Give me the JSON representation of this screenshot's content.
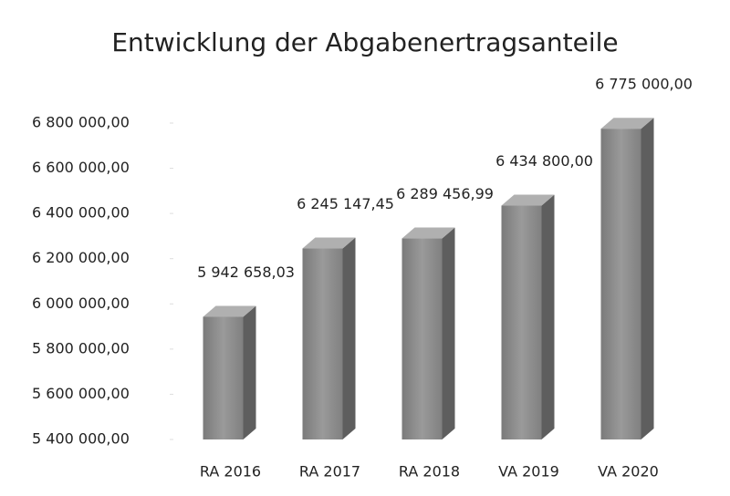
{
  "chart_data": {
    "type": "bar3d",
    "title": "Entwicklung der Abgabenertragsanteile",
    "categories": [
      "RA 2016",
      "RA 2017",
      "RA 2018",
      "VA 2019",
      "VA 2020"
    ],
    "values": [
      5942658.03,
      6245147.45,
      6289456.99,
      6434800,
      6775000
    ],
    "value_labels": [
      "5 942 658,03",
      "6 245 147,45",
      "6 289 456,99",
      "6 434 800,00",
      "6 775 000,00"
    ],
    "color": "#8c8c8c",
    "ylim": [
      5400000,
      6800000
    ],
    "yticks": [
      {
        "value": 5400000,
        "label": "5 400 000,00"
      },
      {
        "value": 5600000,
        "label": "5 600 000,00"
      },
      {
        "value": 5800000,
        "label": "5 800 000,00"
      },
      {
        "value": 6000000,
        "label": "6 000 000,00"
      },
      {
        "value": 6200000,
        "label": "6 200 000,00"
      },
      {
        "value": 6400000,
        "label": "6 400 000,00"
      },
      {
        "value": 6600000,
        "label": "6 600 000,00"
      },
      {
        "value": 6800000,
        "label": "6 800 000,00"
      }
    ]
  }
}
